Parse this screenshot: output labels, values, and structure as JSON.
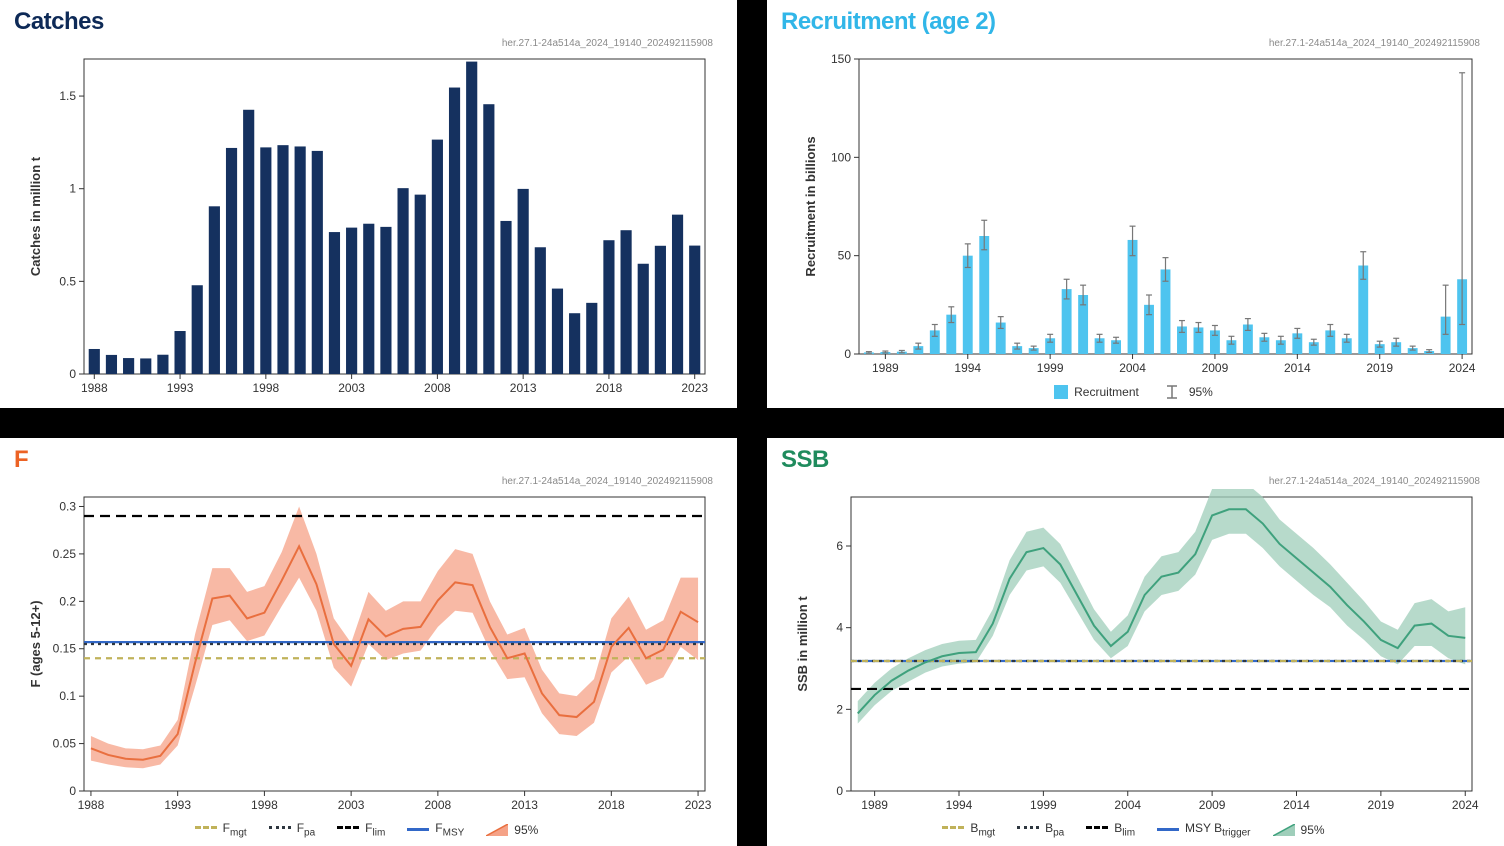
{
  "source_tag": "her.27.1-24a514a_2024_19140_202492115908",
  "colors": {
    "bg_page": "#000000",
    "panel_bg": "#ffffff",
    "plot_border": "#333333",
    "grid": "#e0e0e0",
    "tick_text": "#333333",
    "catches_title": "#0e2a57",
    "catches_bar": "#15315f",
    "recruitment_title": "#31b6e8",
    "recruitment_bar": "#4ec4ef",
    "recruitment_err": "#777777",
    "f_title": "#ec6224",
    "f_line": "#e96f3f",
    "f_ribbon": "#f5a287",
    "ssb_title": "#1f8b5d",
    "ssb_line": "#3fa17d",
    "ssb_ribbon": "#9fceba",
    "ref_fmgt": "#c0b25a",
    "ref_fpa": "#2e3740",
    "ref_flim": "#000000",
    "ref_fmsy": "#3268c8"
  },
  "catches": {
    "title": "Catches",
    "type": "bar",
    "ylabel": "Catches in million t",
    "ylim": [
      0,
      1.7
    ],
    "ytick_step": 0.5,
    "xtick_start": 1988,
    "xtick_step": 5,
    "bar_width": 0.65,
    "years_start": 1988,
    "years_end": 2023,
    "values": [
      0.135,
      0.103,
      0.086,
      0.084,
      0.104,
      0.232,
      0.479,
      0.905,
      1.22,
      1.426,
      1.223,
      1.235,
      1.228,
      1.204,
      0.766,
      0.79,
      0.811,
      0.794,
      1.003,
      0.968,
      1.265,
      1.546,
      1.686,
      1.456,
      0.826,
      0.999,
      0.684,
      0.461,
      0.328,
      0.384,
      0.722,
      0.776,
      0.595,
      0.692,
      0.86,
      0.693
    ]
  },
  "recruitment": {
    "title": "Recruitment (age 2)",
    "type": "bar_err",
    "ylabel": "Recruitment in billions",
    "ylim": [
      0,
      150
    ],
    "ytick_step": 50,
    "xtick_start": 1989,
    "xtick_step": 5,
    "bar_width": 0.6,
    "years_start": 1988,
    "years_end": 2024,
    "values": [
      0.8,
      1.0,
      1.2,
      4.0,
      12.0,
      20.0,
      50.0,
      60.0,
      16.0,
      4.0,
      3.0,
      8.0,
      33.0,
      30.0,
      8.0,
      7.0,
      58.0,
      25.0,
      43.0,
      14.0,
      13.5,
      12.0,
      7.0,
      15.0,
      8.5,
      7.0,
      10.5,
      6.0,
      12.0,
      8.0,
      45.0,
      5.0,
      6.0,
      3.0,
      1.5,
      19.0,
      38.0
    ],
    "err_low": [
      0.4,
      0.5,
      0.6,
      2.5,
      9.0,
      16.0,
      44.0,
      53.0,
      13.0,
      2.5,
      2.0,
      6.0,
      28.0,
      25.0,
      6.0,
      5.5,
      50.0,
      20.0,
      37.0,
      11.0,
      11.0,
      9.5,
      5.0,
      12.0,
      6.5,
      5.0,
      8.0,
      4.5,
      9.0,
      6.0,
      38.0,
      3.5,
      4.0,
      2.0,
      0.8,
      10.0,
      15.0
    ],
    "err_high": [
      1.2,
      1.5,
      1.8,
      5.5,
      15.0,
      24.0,
      56.0,
      68.0,
      19.0,
      5.5,
      4.0,
      10.0,
      38.0,
      35.0,
      10.0,
      8.5,
      65.0,
      30.0,
      49.0,
      17.0,
      16.0,
      14.5,
      9.0,
      18.0,
      10.5,
      9.0,
      13.0,
      7.5,
      15.0,
      10.0,
      52.0,
      6.5,
      8.0,
      4.0,
      2.2,
      35.0,
      143.0
    ],
    "legend": {
      "series": "Recruitment",
      "ci": "95%"
    }
  },
  "f": {
    "title": "F",
    "type": "line_ribbon",
    "ylabel": "F (ages 5-12+)",
    "ylim": [
      0,
      0.31
    ],
    "yticks": [
      0,
      0.05,
      0.1,
      0.15,
      0.2,
      0.25,
      0.3
    ],
    "xtick_start": 1988,
    "xtick_step": 5,
    "years_start": 1988,
    "years_end": 2023,
    "mean": [
      0.045,
      0.038,
      0.034,
      0.033,
      0.037,
      0.06,
      0.135,
      0.203,
      0.206,
      0.182,
      0.188,
      0.222,
      0.258,
      0.218,
      0.155,
      0.132,
      0.181,
      0.163,
      0.171,
      0.173,
      0.201,
      0.22,
      0.217,
      0.173,
      0.14,
      0.145,
      0.103,
      0.08,
      0.078,
      0.094,
      0.152,
      0.172,
      0.14,
      0.149,
      0.189,
      0.178
    ],
    "low": [
      0.032,
      0.028,
      0.025,
      0.024,
      0.028,
      0.048,
      0.11,
      0.175,
      0.18,
      0.158,
      0.164,
      0.195,
      0.225,
      0.19,
      0.13,
      0.11,
      0.155,
      0.138,
      0.145,
      0.148,
      0.173,
      0.19,
      0.188,
      0.148,
      0.118,
      0.12,
      0.082,
      0.06,
      0.058,
      0.072,
      0.125,
      0.142,
      0.112,
      0.12,
      0.152,
      0.138
    ],
    "high": [
      0.058,
      0.05,
      0.045,
      0.044,
      0.048,
      0.075,
      0.165,
      0.235,
      0.235,
      0.21,
      0.216,
      0.252,
      0.3,
      0.25,
      0.182,
      0.156,
      0.21,
      0.19,
      0.2,
      0.2,
      0.232,
      0.255,
      0.25,
      0.2,
      0.165,
      0.172,
      0.128,
      0.103,
      0.1,
      0.118,
      0.182,
      0.205,
      0.17,
      0.18,
      0.225,
      0.225
    ],
    "refs": {
      "fmgt": 0.14,
      "fpa": 0.155,
      "flim": 0.29,
      "fmsy": 0.157
    },
    "legend": {
      "fmgt": "Fmgt",
      "fpa": "Fpa",
      "flim": "Flim",
      "fmsy": "FMSY",
      "ci": "95%"
    }
  },
  "ssb": {
    "title": "SSB",
    "type": "line_ribbon",
    "ylabel": "SSB in million t",
    "ylim": [
      0,
      7.2
    ],
    "yticks": [
      0,
      2,
      4,
      6
    ],
    "xtick_start": 1989,
    "xtick_step": 5,
    "years_start": 1988,
    "years_end": 2024,
    "mean": [
      1.9,
      2.35,
      2.7,
      2.95,
      3.15,
      3.3,
      3.38,
      3.4,
      4.1,
      5.2,
      5.85,
      5.95,
      5.55,
      4.8,
      4.05,
      3.55,
      3.9,
      4.8,
      5.25,
      5.35,
      5.8,
      6.75,
      6.9,
      6.9,
      6.55,
      6.05,
      5.7,
      5.35,
      5.0,
      4.55,
      4.15,
      3.7,
      3.5,
      4.05,
      4.1,
      3.8,
      3.75
    ],
    "low": [
      1.65,
      2.1,
      2.45,
      2.68,
      2.9,
      3.05,
      3.12,
      3.15,
      3.8,
      4.8,
      5.4,
      5.5,
      5.1,
      4.4,
      3.7,
      3.25,
      3.55,
      4.4,
      4.8,
      4.9,
      5.3,
      6.15,
      6.3,
      6.3,
      5.95,
      5.5,
      5.15,
      4.8,
      4.5,
      4.05,
      3.7,
      3.3,
      3.1,
      3.55,
      3.55,
      3.25,
      3.1
    ],
    "high": [
      2.2,
      2.65,
      3.0,
      3.25,
      3.45,
      3.6,
      3.68,
      3.7,
      4.45,
      5.65,
      6.35,
      6.45,
      6.05,
      5.25,
      4.45,
      3.9,
      4.3,
      5.25,
      5.75,
      5.85,
      6.35,
      7.4,
      7.55,
      7.55,
      7.2,
      6.65,
      6.3,
      5.95,
      5.55,
      5.1,
      4.65,
      4.15,
      3.95,
      4.6,
      4.7,
      4.4,
      4.5
    ],
    "refs": {
      "bmgt": 3.184,
      "bpa": 3.184,
      "blim": 2.5,
      "msybtrigger": 3.184
    },
    "legend": {
      "bmgt": "Bmgt",
      "bpa": "Bpa",
      "blim": "Blim",
      "msybtrigger": "MSY Btrigger",
      "ci": "95%"
    }
  }
}
